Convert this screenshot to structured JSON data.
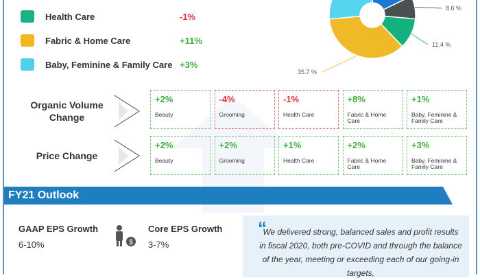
{
  "segments": [
    {
      "name": "Health Care",
      "value": "-1%",
      "icon": "hospital-icon",
      "color": "#1db087",
      "tone": "red"
    },
    {
      "name": "Fabric & Home Care",
      "value": "+11%",
      "icon": "detergent-icon",
      "color": "#f0b81e",
      "tone": "green"
    },
    {
      "name": "Baby, Feminine & Family Care",
      "value": "+3%",
      "icon": "family-icon",
      "color": "#4fcfe8",
      "tone": "green"
    }
  ],
  "chart_data": {
    "type": "pie",
    "donut": true,
    "slices": [
      {
        "value": 17.8,
        "label": "",
        "color": "#1a77d4"
      },
      {
        "value": 8.6,
        "label": "8.6 %",
        "color": "#4a4f50"
      },
      {
        "value": 11.4,
        "label": "11.4 %",
        "color": "#14b07e"
      },
      {
        "value": 35.7,
        "label": "35.7 %",
        "color": "#f0b928"
      },
      {
        "value": 26.5,
        "label": "",
        "color": "#55d3ef"
      }
    ]
  },
  "volume": {
    "label": "Organic Volume Change",
    "cards": [
      {
        "value": "+2%",
        "name": "Beauty",
        "tone": "green"
      },
      {
        "value": "-4%",
        "name": "Grooming",
        "tone": "red"
      },
      {
        "value": "-1%",
        "name": "Health Care",
        "tone": "red"
      },
      {
        "value": "+8%",
        "name": "Fabric & Home Care",
        "tone": "green"
      },
      {
        "value": "+1%",
        "name": "Baby, Feminine & Family Care",
        "tone": "green"
      }
    ]
  },
  "price": {
    "label": "Price Change",
    "cards": [
      {
        "value": "+2%",
        "name": "Beauty",
        "tone": "green"
      },
      {
        "value": "+2%",
        "name": "Grooming",
        "tone": "green"
      },
      {
        "value": "+1%",
        "name": "Health Care",
        "tone": "green"
      },
      {
        "value": "+2%",
        "name": "Fabric & Home Care",
        "tone": "green"
      },
      {
        "value": "+3%",
        "name": "Baby, Feminine & Family Care",
        "tone": "green"
      }
    ]
  },
  "outlook": {
    "title": "FY21 Outlook",
    "gaap_label": "GAAP EPS Growth",
    "gaap_value": "6-10%",
    "core_label": "Core EPS Growth",
    "core_value": "3-7%",
    "quote": "We delivered strong, balanced sales and profit results in fiscal 2020, both pre-COVID and through the balance of the year, meeting or exceeding each of our going-in targets,"
  }
}
